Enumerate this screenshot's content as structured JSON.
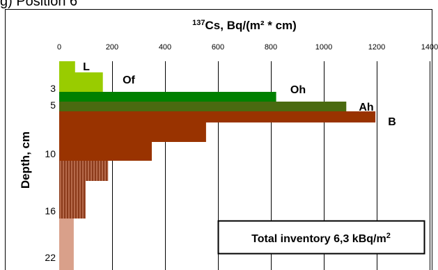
{
  "caption": "g) Position 6",
  "chart_data": {
    "type": "bar",
    "orientation": "horizontal",
    "title": "¹³⁷Cs, Bq/(m² * cm)",
    "title_parts": {
      "superscript": "137",
      "text": "Cs, Bq/(m² * cm)"
    },
    "ylabel": "Depth, cm",
    "xlim": [
      0,
      1400
    ],
    "x_ticks": [
      "0",
      "200",
      "400",
      "600",
      "800",
      "1000",
      "1200",
      "1400"
    ],
    "y_tick_labels": [
      "3",
      "5",
      "10",
      "16",
      "22"
    ],
    "grid": {
      "vertical": true,
      "horizontal": false
    },
    "axis_position": "top",
    "bars": [
      {
        "horizon": "L",
        "value": 60,
        "color": "#99cc00",
        "pattern": "solid"
      },
      {
        "horizon": "Of",
        "value": 165,
        "color": "#99cc00",
        "pattern": "solid"
      },
      {
        "horizon": "Oh",
        "value": 820,
        "color": "#008000",
        "pattern": "solid"
      },
      {
        "horizon": "Ah",
        "value": 1085,
        "color": "#4a6a10",
        "pattern": "solid"
      },
      {
        "horizon": "B",
        "value": 1195,
        "color": "#993300",
        "pattern": "solid"
      },
      {
        "horizon": "B",
        "value": 555,
        "color": "#993300",
        "pattern": "solid"
      },
      {
        "horizon": "B",
        "value": 350,
        "color": "#993300",
        "pattern": "solid"
      },
      {
        "horizon": "",
        "value": 185,
        "color": "#a0522d",
        "pattern": "striped"
      },
      {
        "horizon": "",
        "value": 100,
        "color": "#a0522d",
        "pattern": "striped"
      },
      {
        "horizon": "",
        "value": 55,
        "color": "#d9a08a",
        "pattern": "solid"
      }
    ],
    "horizon_labels": [
      "L",
      "Of",
      "Oh",
      "Ah",
      "B"
    ],
    "annotation": {
      "text_main": "Total inventory 6,3 kBq/m",
      "text_sup": "2"
    }
  }
}
